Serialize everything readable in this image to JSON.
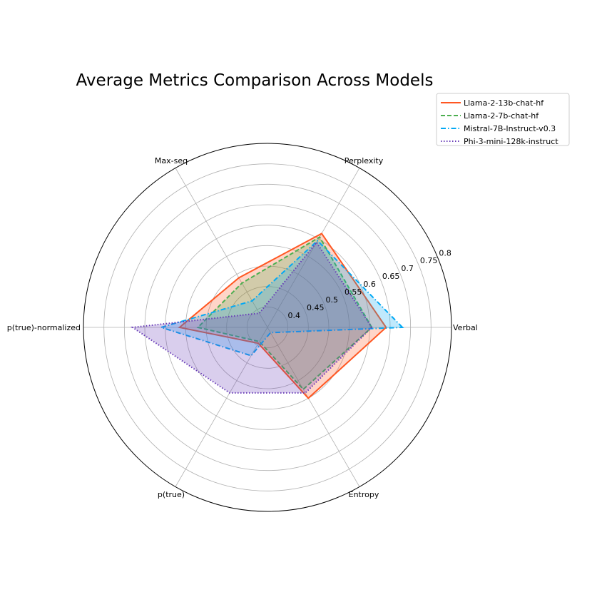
{
  "chart_data": {
    "type": "radar",
    "title": "Average Metrics Comparison Across Models",
    "categories": [
      "Verbal",
      "Perplexity",
      "Max-seq",
      "p(true)-normalized",
      "p(true)",
      "Entropy"
    ],
    "rlim": [
      0.35,
      0.8
    ],
    "r_ticks": [
      "0.4",
      "0.45",
      "0.5",
      "0.55",
      "0.6",
      "0.65",
      "0.7",
      "0.75",
      "0.8"
    ],
    "grid": true,
    "legend": "top-right",
    "series": [
      {
        "name": "Llama-2-13b-chat-hf",
        "color": "#ff5722",
        "line": "solid",
        "values": [
          0.64,
          0.615,
          0.49,
          0.565,
          0.395,
          0.55
        ]
      },
      {
        "name": "Llama-2-7b-chat-hf",
        "color": "#4caf50",
        "line": "dashed",
        "values": [
          0.605,
          0.605,
          0.475,
          0.52,
          0.39,
          0.525
        ]
      },
      {
        "name": "Mistral-7B-Instruct-v0.3",
        "color": "#03a9f4",
        "line": "dashdot",
        "values": [
          0.68,
          0.595,
          0.425,
          0.61,
          0.43,
          0.365
        ]
      },
      {
        "name": "Phi-3-mini-128k-instruct",
        "color": "#673ab7",
        "line": "dotted",
        "values": [
          0.605,
          0.59,
          0.39,
          0.68,
          0.535,
          0.535
        ]
      }
    ]
  }
}
